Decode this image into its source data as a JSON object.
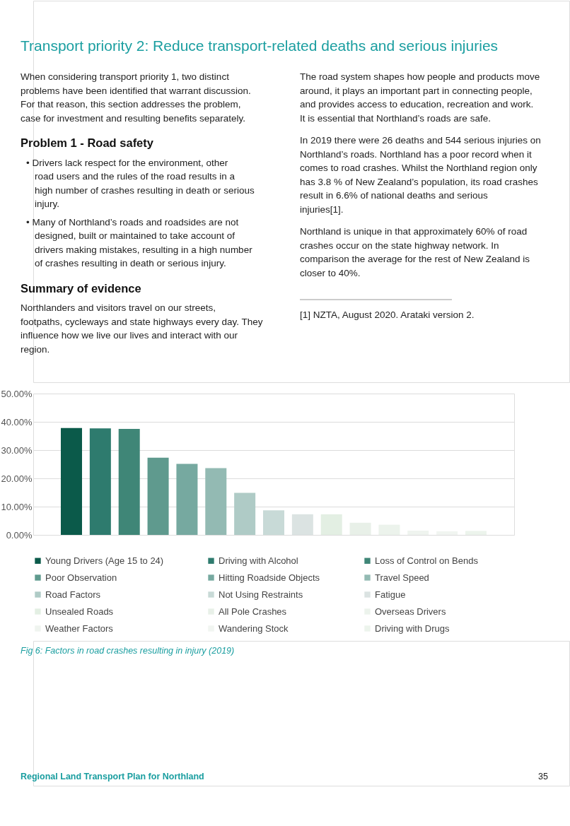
{
  "chart_data": {
    "type": "bar",
    "title": "Transport priority 2: Reduce transport-related deaths and serious injuries",
    "categories": [
      null
    ],
    "series": [
      {
        "name": "Young Drivers (Age 15 to 24)",
        "color": "#0b5a4a",
        "values": [
          37.8
        ]
      },
      {
        "name": "Driving with Alcohol",
        "color": "#2e7b6e",
        "values": [
          37.7
        ]
      },
      {
        "name": "Loss of Control on Bends",
        "color": "#3f8677",
        "values": [
          37.5
        ]
      },
      {
        "name": "Poor Observation",
        "color": "#5f9a8e",
        "values": [
          27.3
        ]
      },
      {
        "name": "Hitting Roadside Objects",
        "color": "#76a9a0",
        "values": [
          25.1
        ]
      },
      {
        "name": "Travel Speed",
        "color": "#93bab3",
        "values": [
          23.6
        ]
      },
      {
        "name": "Road Factors",
        "color": "#afcbc6",
        "values": [
          14.9
        ]
      },
      {
        "name": "Not Using Restraints",
        "color": "#c8dad7",
        "values": [
          8.7
        ]
      },
      {
        "name": "Fatigue",
        "color": "#dbe3e2",
        "values": [
          7.3
        ]
      },
      {
        "name": "Unsealed Roads",
        "color": "#e3efe3",
        "values": [
          7.3
        ]
      },
      {
        "name": "All Pole Crashes",
        "color": "#e8f0e8",
        "values": [
          4.3
        ]
      },
      {
        "name": "Overseas Drivers",
        "color": "#ecf3ec",
        "values": [
          3.6
        ]
      },
      {
        "name": "Weather Factors",
        "color": "#eff4ef",
        "values": [
          1.5
        ]
      },
      {
        "name": "Wandering Stock",
        "color": "#f1f5f1",
        "values": [
          1.3
        ]
      },
      {
        "name": "Driving with Drugs",
        "color": "#ecf4ec",
        "values": [
          1.4
        ]
      }
    ],
    "ylim": [
      0,
      50
    ],
    "yticks": [
      {
        "value": 0,
        "label": "0.00%"
      },
      {
        "value": 10,
        "label": "10.00%"
      },
      {
        "value": 20,
        "label": "20.00%"
      },
      {
        "value": 30,
        "label": "30.00%"
      },
      {
        "value": 40,
        "label": "40.00%"
      },
      {
        "value": 50,
        "label": "50.00%"
      }
    ],
    "grid": "y",
    "legend": "bottom",
    "tick_labels": "y",
    "annotations": [
      "When considering transport priority 1, two distinct problems have been identified that warrant discussion. For that reason, this section addresses the problem, case for investment and resulting benefits separately.",
      "Problem 1 - Road safety",
      "• Drivers lack respect for the environment, other road users and the rules of the road results in a high number of crashes resulting in death or serious injury.",
      "• Many of Northland’s roads and roadsides are not designed, built or maintained to take account of drivers making mistakes, resulting in a high number of crashes resulting in death or serious injury.",
      "Summary of evidence",
      "Northlanders and visitors travel on our streets, footpaths, cycleways and state highways every day. They influence how we live our lives and interact with our region.",
      "The road system shapes how people and products move around, it plays an important part in connecting people, and provides access to education, recreation and work. It is essential that Northland’s roads are safe.",
      "In 2019 there were 26 deaths and 544 serious injuries on Northland’s roads. Northland has a poor record when it comes to road crashes. Whilst the Northland region only has 3.8 % of New Zealand’s population, its road crashes result in 6.6% of national deaths and serious injuries[1].",
      "Northland is unique in that approximately 60% of road crashes occur on the state highway network. In comparison the average for the rest of New Zealand is closer to 40%.",
      "[1] NZTA, August 2020. Arataki version 2.",
      "Fig 6: Factors in road crashes resulting in injury (2019)",
      "Regional Land Transport Plan for Northland",
      "35"
    ]
  }
}
